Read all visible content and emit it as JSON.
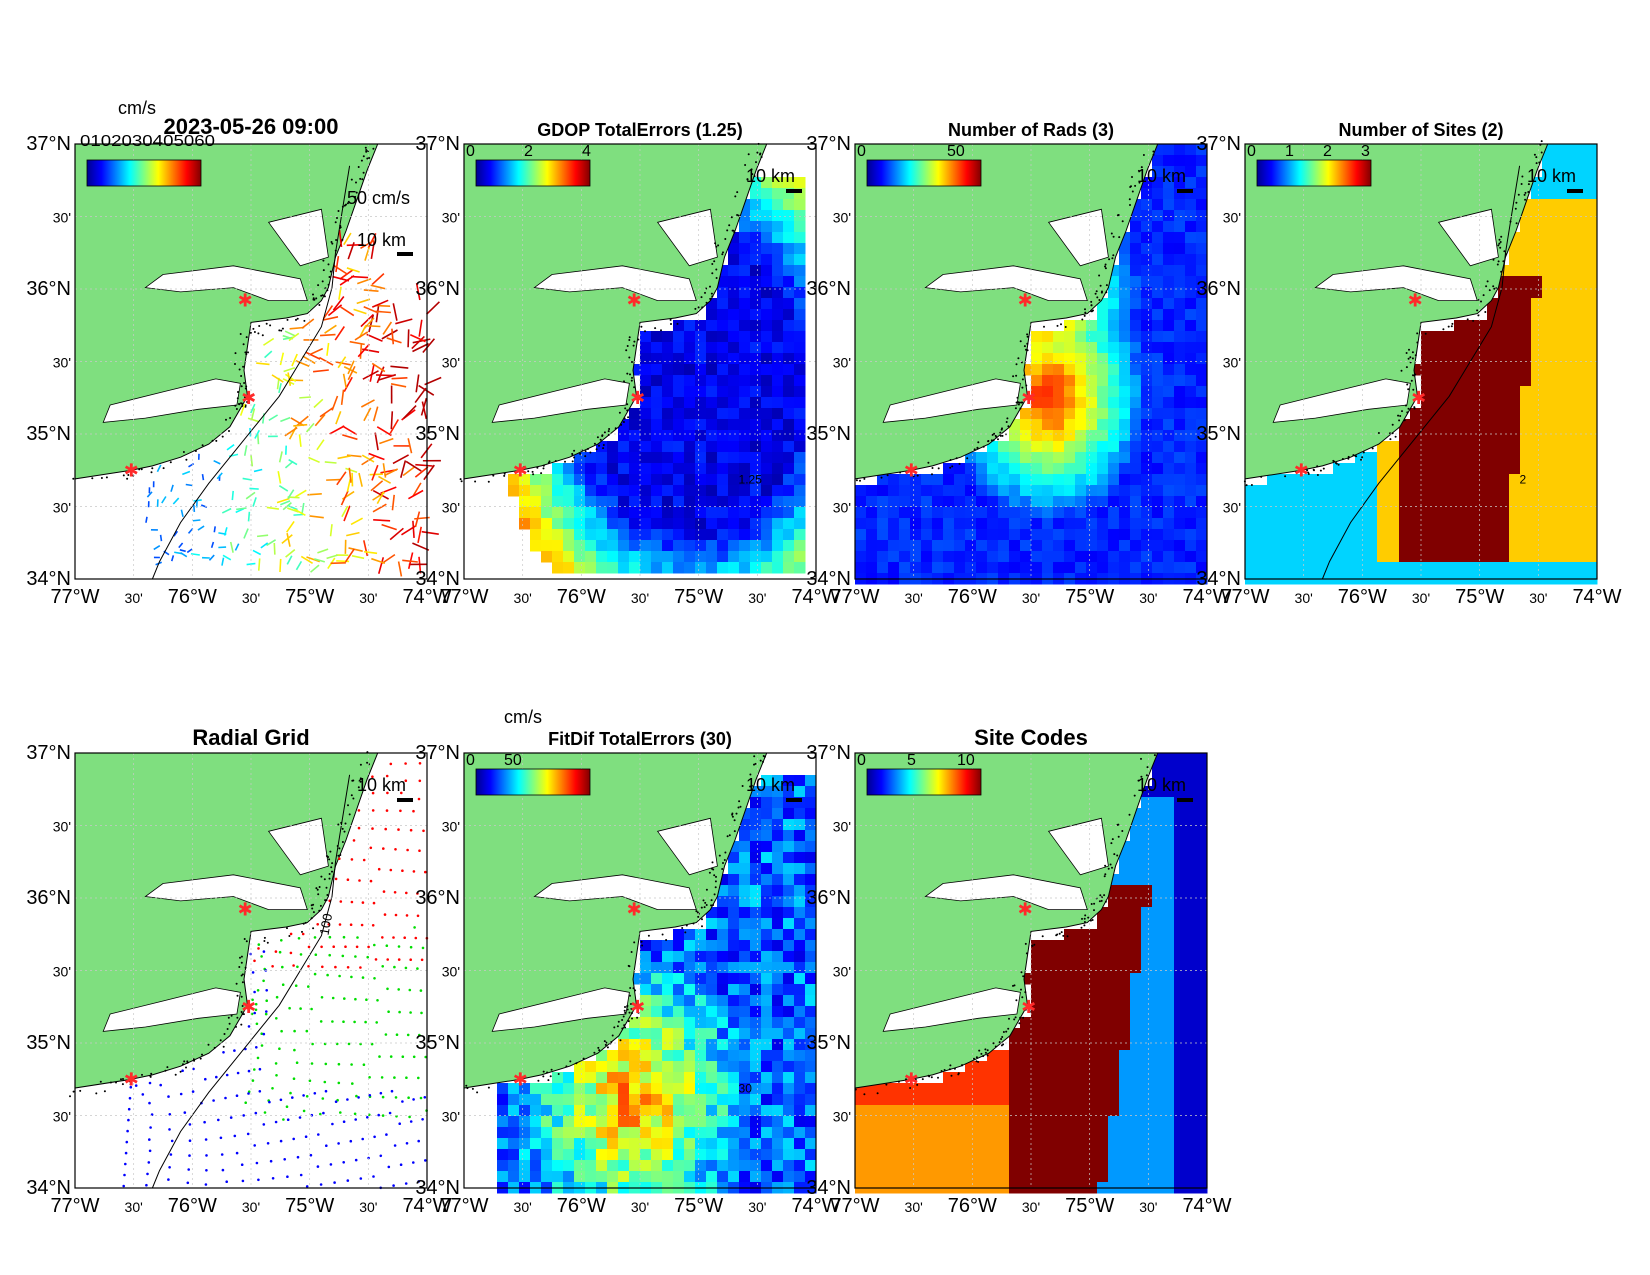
{
  "map_extent": {
    "lon": [
      -77,
      -74
    ],
    "lat": [
      34,
      37
    ]
  },
  "lat_ticks": [
    "34°N",
    "30'",
    "35°N",
    "30'",
    "36°N",
    "30'",
    "37°N"
  ],
  "lon_ticks": [
    "77°W",
    "30'",
    "76°W",
    "30'",
    "75°W",
    "30'",
    "74°W"
  ],
  "scale_bar_label": "10 km",
  "isobath_label": "100",
  "colors": {
    "land": "#7fdf7f",
    "coast": "#000000",
    "site_marker": "#ff2a2a",
    "grid": "#c8c8c8"
  },
  "sites": [
    {
      "lon": -75.55,
      "lat": 35.92
    },
    {
      "lon": -75.52,
      "lat": 35.25
    },
    {
      "lon": -76.52,
      "lat": 34.75
    }
  ],
  "panels": [
    {
      "id": "currents",
      "title": "2023-05-26 09:00",
      "cbar_unit": "cm/s",
      "cbar_ticks": [],
      "cbar_overlap_text": "0102030405060",
      "vector_label": "50 cm/s",
      "type": "vectors"
    },
    {
      "id": "gdop",
      "title": "GDOP TotalErrors (1.25)",
      "cbar_unit": "",
      "cbar_ticks": [
        "0",
        "2",
        "4"
      ],
      "contour_label": "1.25",
      "type": "field"
    },
    {
      "id": "nrads",
      "title": "Number of Rads (3)",
      "cbar_unit": "",
      "cbar_ticks": [
        "0",
        "50"
      ],
      "type": "field"
    },
    {
      "id": "nsites",
      "title": "Number of Sites (2)",
      "cbar_unit": "",
      "cbar_ticks": [
        "0",
        "1",
        "2",
        "3"
      ],
      "contour_label": "2",
      "type": "field"
    },
    {
      "id": "radial",
      "title": "Radial Grid",
      "cbar_unit": "",
      "cbar_ticks": [],
      "type": "radial"
    },
    {
      "id": "fitdif",
      "title": "FitDif TotalErrors (30)",
      "cbar_unit": "cm/s",
      "cbar_ticks": [
        "0",
        "50"
      ],
      "contour_label": "30",
      "type": "field"
    },
    {
      "id": "sitecodes",
      "title": "Site Codes",
      "cbar_unit": "",
      "cbar_ticks": [
        "0",
        "5",
        "10"
      ],
      "type": "field"
    }
  ]
}
